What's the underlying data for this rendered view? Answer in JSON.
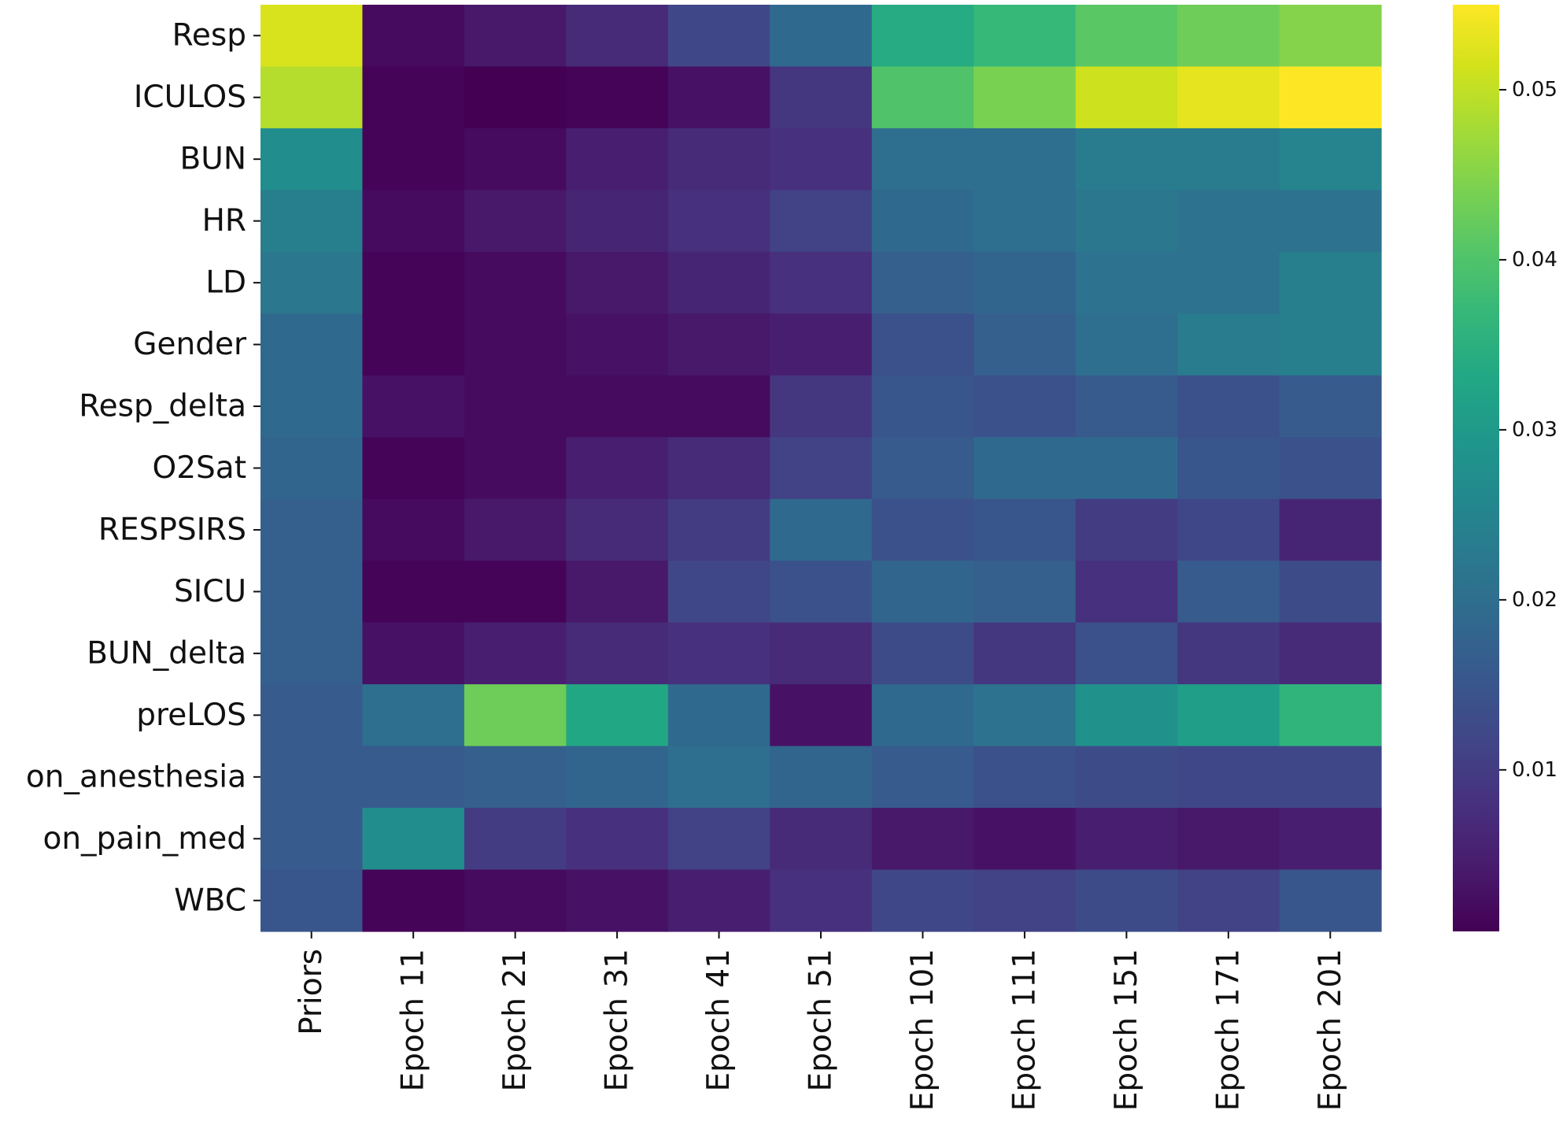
{
  "chart_data": {
    "type": "heatmap",
    "title": "",
    "xlabel": "",
    "ylabel": "",
    "colormap": "viridis",
    "rows": [
      "Resp",
      "ICULOS",
      "BUN",
      "HR",
      "LD",
      "Gender",
      "Resp_delta",
      "O2Sat",
      "RESPSIRS",
      "SICU",
      "BUN_delta",
      "preLOS",
      "on_anesthesia",
      "on_pain_med",
      "WBC"
    ],
    "columns": [
      "Priors",
      "Epoch 11",
      "Epoch 21",
      "Epoch 31",
      "Epoch 41",
      "Epoch 51",
      "Epoch 101",
      "Epoch 111",
      "Epoch 151",
      "Epoch 171",
      "Epoch 201"
    ],
    "values": [
      [
        0.052,
        0.002,
        0.004,
        0.007,
        0.012,
        0.019,
        0.034,
        0.037,
        0.041,
        0.043,
        0.045
      ],
      [
        0.049,
        0.001,
        0.0005,
        0.001,
        0.003,
        0.009,
        0.04,
        0.044,
        0.051,
        0.053,
        0.055
      ],
      [
        0.027,
        0.001,
        0.002,
        0.005,
        0.007,
        0.008,
        0.02,
        0.02,
        0.023,
        0.023,
        0.025
      ],
      [
        0.024,
        0.002,
        0.004,
        0.006,
        0.008,
        0.011,
        0.019,
        0.02,
        0.022,
        0.021,
        0.021
      ],
      [
        0.022,
        0.001,
        0.002,
        0.004,
        0.006,
        0.008,
        0.017,
        0.018,
        0.021,
        0.021,
        0.024
      ],
      [
        0.019,
        0.001,
        0.002,
        0.003,
        0.004,
        0.005,
        0.014,
        0.017,
        0.02,
        0.023,
        0.024
      ],
      [
        0.019,
        0.003,
        0.002,
        0.002,
        0.002,
        0.009,
        0.015,
        0.014,
        0.016,
        0.014,
        0.016
      ],
      [
        0.018,
        0.001,
        0.002,
        0.005,
        0.007,
        0.011,
        0.016,
        0.019,
        0.019,
        0.015,
        0.014
      ],
      [
        0.017,
        0.002,
        0.004,
        0.007,
        0.01,
        0.019,
        0.014,
        0.015,
        0.01,
        0.012,
        0.006
      ],
      [
        0.017,
        0.001,
        0.001,
        0.004,
        0.012,
        0.014,
        0.018,
        0.017,
        0.008,
        0.016,
        0.013
      ],
      [
        0.017,
        0.003,
        0.005,
        0.007,
        0.008,
        0.007,
        0.013,
        0.009,
        0.014,
        0.009,
        0.007
      ],
      [
        0.016,
        0.02,
        0.043,
        0.033,
        0.019,
        0.003,
        0.019,
        0.021,
        0.028,
        0.031,
        0.036
      ],
      [
        0.016,
        0.016,
        0.017,
        0.018,
        0.02,
        0.018,
        0.016,
        0.014,
        0.013,
        0.012,
        0.012
      ],
      [
        0.016,
        0.027,
        0.01,
        0.008,
        0.011,
        0.007,
        0.004,
        0.003,
        0.005,
        0.004,
        0.005
      ],
      [
        0.015,
        0.001,
        0.002,
        0.003,
        0.005,
        0.008,
        0.012,
        0.011,
        0.013,
        0.011,
        0.015
      ]
    ],
    "colorbar": {
      "vmin": 0.0005,
      "vmax": 0.055,
      "ticks": [
        0.01,
        0.02,
        0.03,
        0.04,
        0.05
      ],
      "tick_labels": [
        "0.01",
        "0.02",
        "0.03",
        "0.04",
        "0.05"
      ]
    }
  }
}
